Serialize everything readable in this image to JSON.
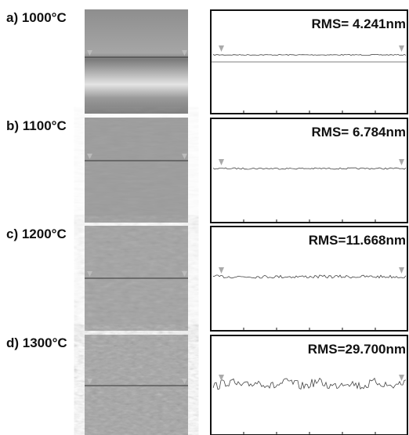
{
  "panels": [
    {
      "label": "a) 1000°C",
      "rms": "RMS= 4.241nm"
    },
    {
      "label": "b) 1100°C",
      "rms": "RMS= 6.784nm"
    },
    {
      "label": "c) 1200°C",
      "rms": "RMS=11.668nm"
    },
    {
      "label": "d) 1300°C",
      "rms": "RMS=29.700nm"
    }
  ]
}
